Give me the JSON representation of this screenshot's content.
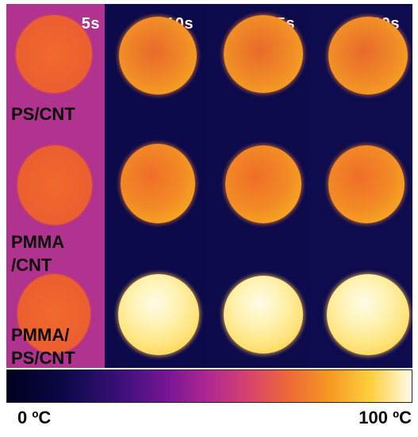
{
  "time_labels": [
    "5s",
    "10s",
    "15s",
    "20s"
  ],
  "samples": [
    {
      "label": "PS/CNT"
    },
    {
      "label": "PMMA\n/CNT"
    },
    {
      "label": "PMMA/\nPS/CNT"
    }
  ],
  "colorbar": {
    "min_label": "0 ºC",
    "max_label": "100 ºC"
  },
  "colors": {
    "panel_5s_bg": "#b0338f",
    "panel_bg": "#0c0a4a",
    "disk_5s": "#ec6030",
    "disk_hot": "#ffe37a"
  }
}
